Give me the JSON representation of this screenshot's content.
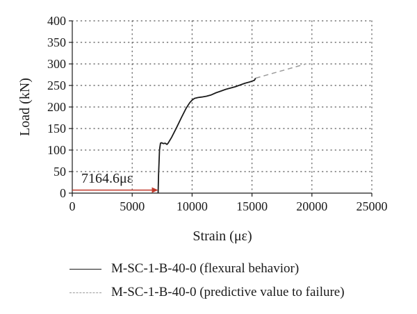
{
  "chart_data": {
    "type": "line",
    "xlabel": "Strain (με)",
    "ylabel": "Load (kN)",
    "xlim": [
      0,
      25000
    ],
    "ylim": [
      0,
      400
    ],
    "x_ticks": [
      "0",
      "5000",
      "10000",
      "15000",
      "20000",
      "25000"
    ],
    "y_ticks": [
      "0",
      "50",
      "100",
      "150",
      "200",
      "250",
      "300",
      "350",
      "400"
    ],
    "grid": "dotted",
    "legend_position": "bottom",
    "annotation": {
      "text": "7164.6με",
      "arrow_from": [
        0,
        7
      ],
      "arrow_to": [
        7164.6,
        7
      ],
      "color": "#c0392b"
    },
    "series": [
      {
        "name": "M-SC-1-B-40-0 (flexural behavior)",
        "style": "solid",
        "color": "#1a1a1a",
        "x": [
          7164.6,
          7200,
          7280,
          7360,
          7450,
          7600,
          7750,
          7900,
          8000,
          8300,
          8700,
          9100,
          9500,
          9800,
          10000,
          10200,
          10500,
          10800,
          11200,
          11600,
          12000,
          12400,
          12800,
          13200,
          13600,
          14000,
          14400,
          14800,
          15000,
          15200,
          15300
        ],
        "y": [
          0,
          40,
          100,
          116,
          117,
          115,
          116,
          113,
          116,
          130,
          152,
          175,
          197,
          210,
          216,
          220,
          222,
          223,
          225,
          228,
          233,
          237,
          241,
          244,
          247,
          251,
          255,
          258,
          260,
          262,
          267
        ]
      },
      {
        "name": "M-SC-1-B-40-0 (predictive value to failure)",
        "style": "dashed",
        "color": "#9a9a9a",
        "x": [
          15300,
          19500
        ],
        "y": [
          267,
          300
        ]
      }
    ]
  }
}
